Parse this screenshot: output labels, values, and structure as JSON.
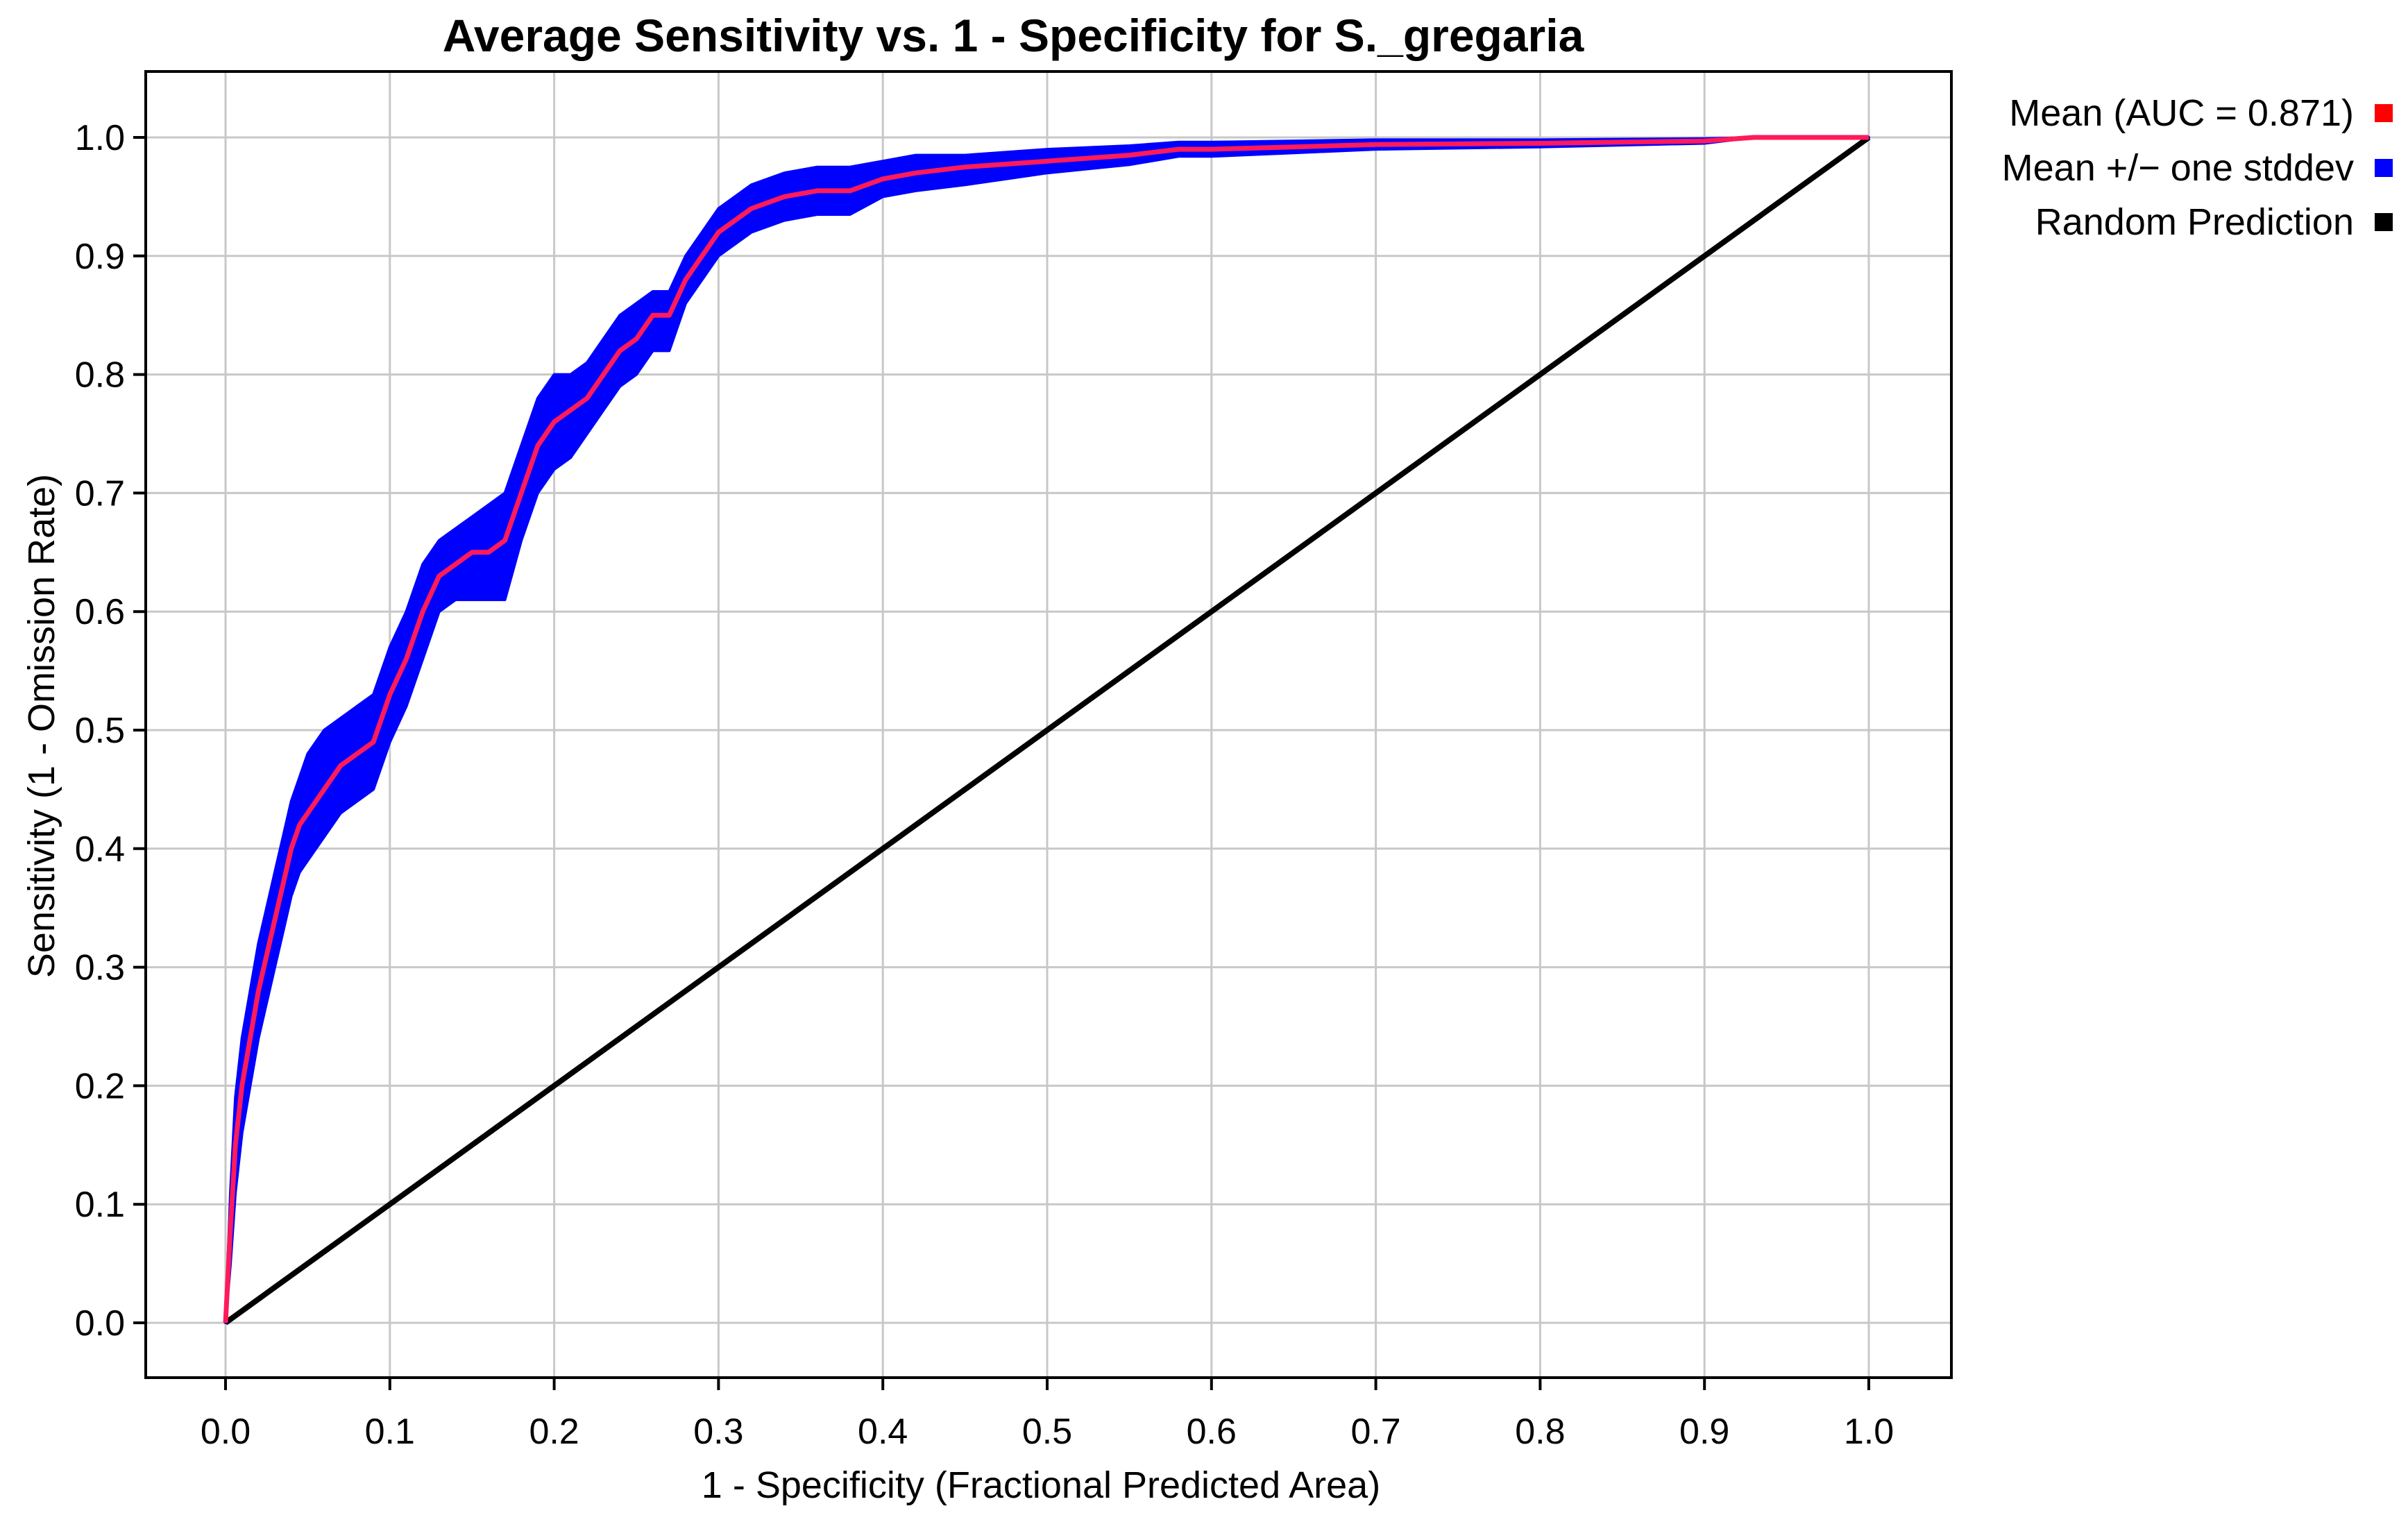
{
  "chart_data": {
    "type": "line",
    "title": "Average Sensitivity vs. 1 - Specificity for S._gregaria",
    "xlabel": "1 - Specificity (Fractional Predicted Area)",
    "ylabel": "Sensitivity (1 - Omission Rate)",
    "xlim": [
      0,
      1
    ],
    "ylim": [
      0,
      1
    ],
    "x_ticks": [
      "0.0",
      "0.1",
      "0.2",
      "0.3",
      "0.4",
      "0.5",
      "0.6",
      "0.7",
      "0.8",
      "0.9",
      "1.0"
    ],
    "y_ticks": [
      "0.0",
      "0.1",
      "0.2",
      "0.3",
      "0.4",
      "0.5",
      "0.6",
      "0.7",
      "0.8",
      "0.9",
      "1.0"
    ],
    "grid": true,
    "legend_position": "outside-right-top",
    "legend": [
      {
        "label": "Mean (AUC = 0.871)",
        "color": "#ff0000"
      },
      {
        "label": "Mean +/− one stddev",
        "color": "#0000ff"
      },
      {
        "label": "Random Prediction",
        "color": "#000000"
      }
    ],
    "series": [
      {
        "name": "Mean (AUC = 0.871)",
        "color": "#ff1a5a",
        "x": [
          0,
          0.003,
          0.006,
          0.01,
          0.015,
          0.02,
          0.025,
          0.03,
          0.035,
          0.04,
          0.045,
          0.05,
          0.06,
          0.07,
          0.08,
          0.09,
          0.1,
          0.11,
          0.12,
          0.13,
          0.14,
          0.15,
          0.16,
          0.17,
          0.18,
          0.19,
          0.2,
          0.21,
          0.22,
          0.23,
          0.24,
          0.25,
          0.26,
          0.27,
          0.28,
          0.29,
          0.3,
          0.32,
          0.34,
          0.36,
          0.38,
          0.4,
          0.42,
          0.45,
          0.5,
          0.55,
          0.58,
          0.6,
          0.65,
          0.7,
          0.8,
          0.9,
          0.93,
          1.0
        ],
        "y": [
          0,
          0.08,
          0.15,
          0.2,
          0.24,
          0.28,
          0.31,
          0.34,
          0.37,
          0.4,
          0.42,
          0.43,
          0.45,
          0.47,
          0.48,
          0.49,
          0.53,
          0.56,
          0.6,
          0.63,
          0.64,
          0.65,
          0.65,
          0.66,
          0.7,
          0.74,
          0.76,
          0.77,
          0.78,
          0.8,
          0.82,
          0.83,
          0.85,
          0.85,
          0.88,
          0.9,
          0.92,
          0.94,
          0.95,
          0.955,
          0.955,
          0.965,
          0.97,
          0.975,
          0.98,
          0.985,
          0.99,
          0.99,
          0.992,
          0.994,
          0.995,
          0.997,
          1.0,
          1.0
        ]
      },
      {
        "name": "Mean +/− one stddev",
        "color": "#0000ff",
        "x": [
          0,
          0.003,
          0.006,
          0.01,
          0.015,
          0.02,
          0.025,
          0.03,
          0.035,
          0.04,
          0.045,
          0.05,
          0.06,
          0.07,
          0.08,
          0.09,
          0.1,
          0.11,
          0.12,
          0.13,
          0.14,
          0.15,
          0.16,
          0.17,
          0.18,
          0.19,
          0.2,
          0.21,
          0.22,
          0.23,
          0.24,
          0.25,
          0.26,
          0.27,
          0.28,
          0.29,
          0.3,
          0.32,
          0.34,
          0.36,
          0.38,
          0.4,
          0.42,
          0.45,
          0.5,
          0.55,
          0.58,
          0.6,
          0.65,
          0.7,
          0.8,
          0.9,
          0.93,
          1.0
        ],
        "upper": [
          0,
          0.11,
          0.19,
          0.24,
          0.28,
          0.32,
          0.35,
          0.38,
          0.41,
          0.44,
          0.46,
          0.48,
          0.5,
          0.51,
          0.52,
          0.53,
          0.57,
          0.6,
          0.64,
          0.66,
          0.67,
          0.68,
          0.69,
          0.7,
          0.74,
          0.78,
          0.8,
          0.8,
          0.81,
          0.83,
          0.85,
          0.86,
          0.87,
          0.87,
          0.9,
          0.92,
          0.94,
          0.96,
          0.97,
          0.975,
          0.975,
          0.98,
          0.985,
          0.985,
          0.99,
          0.993,
          0.996,
          0.996,
          0.997,
          0.998,
          0.998,
          0.999,
          1.0,
          1.0
        ],
        "lower": [
          0,
          0.05,
          0.11,
          0.16,
          0.2,
          0.24,
          0.27,
          0.3,
          0.33,
          0.36,
          0.38,
          0.39,
          0.41,
          0.43,
          0.44,
          0.45,
          0.49,
          0.52,
          0.56,
          0.6,
          0.61,
          0.61,
          0.61,
          0.61,
          0.66,
          0.7,
          0.72,
          0.73,
          0.75,
          0.77,
          0.79,
          0.8,
          0.82,
          0.82,
          0.86,
          0.88,
          0.9,
          0.92,
          0.93,
          0.935,
          0.935,
          0.95,
          0.955,
          0.96,
          0.97,
          0.977,
          0.984,
          0.984,
          0.987,
          0.99,
          0.992,
          0.995,
          1.0,
          1.0
        ]
      },
      {
        "name": "Random Prediction",
        "color": "#000000",
        "x": [
          0,
          1
        ],
        "y": [
          0,
          1
        ]
      }
    ]
  }
}
